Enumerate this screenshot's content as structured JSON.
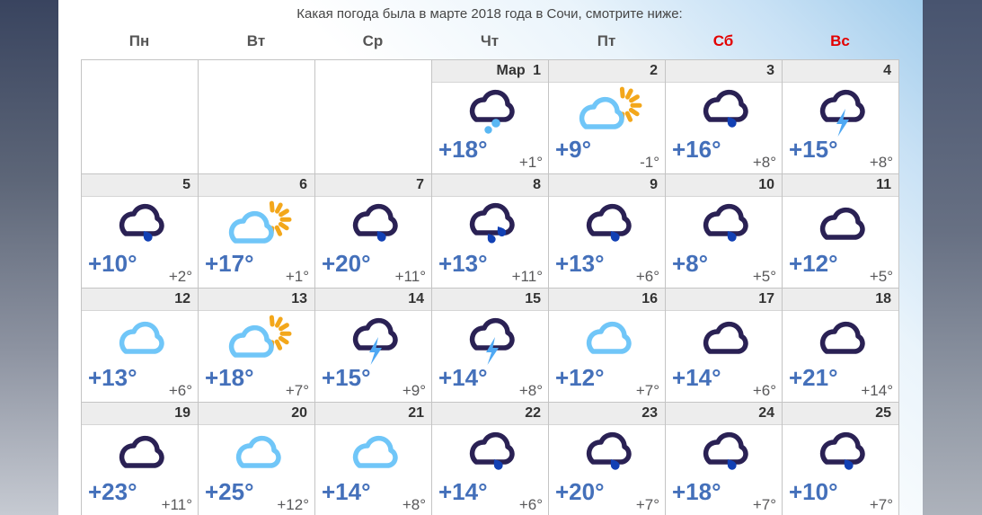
{
  "page": {
    "title": "Какая погода была в марте 2018 года в Сочи, смотрите ниже:",
    "colors": {
      "day_temp": "#4470ba",
      "night_temp": "#58585a",
      "weekday": "#555555",
      "weekend": "#e30000",
      "date_number": "#333333",
      "cloud_dark": "#2a2154",
      "cloud_light": "#70c6f8",
      "sun": "#f3a71b",
      "rain_drop": "#1240b4",
      "lightning": "#4fa8f3",
      "sleet_dot": "#59b7f3"
    }
  },
  "weekdays": [
    {
      "label": "Пн",
      "weekend": false
    },
    {
      "label": "Вт",
      "weekend": false
    },
    {
      "label": "Ср",
      "weekend": false
    },
    {
      "label": "Чт",
      "weekend": false
    },
    {
      "label": "Пт",
      "weekend": false
    },
    {
      "label": "Сб",
      "weekend": true
    },
    {
      "label": "Вс",
      "weekend": true
    }
  ],
  "weeks": [
    {
      "cells": [
        {
          "empty": true
        },
        {
          "empty": true
        },
        {
          "empty": true
        },
        {
          "date": "Мар 1",
          "icon": "sleet",
          "day": "+18°",
          "night": "+1°"
        },
        {
          "date": "2",
          "icon": "sun-cloud",
          "day": "+9°",
          "night": "-1°"
        },
        {
          "date": "3",
          "icon": "rain",
          "day": "+16°",
          "night": "+8°"
        },
        {
          "date": "4",
          "icon": "thunder",
          "day": "+15°",
          "night": "+8°"
        }
      ]
    },
    {
      "cells": [
        {
          "date": "5",
          "icon": "rain",
          "day": "+10°",
          "night": "+2°"
        },
        {
          "date": "6",
          "icon": "sun-cloud",
          "day": "+17°",
          "night": "+1°"
        },
        {
          "date": "7",
          "icon": "rain",
          "day": "+20°",
          "night": "+11°"
        },
        {
          "date": "8",
          "icon": "rain-heavy",
          "day": "+13°",
          "night": "+11°"
        },
        {
          "date": "9",
          "icon": "rain",
          "day": "+13°",
          "night": "+6°"
        },
        {
          "date": "10",
          "icon": "rain",
          "day": "+8°",
          "night": "+5°"
        },
        {
          "date": "11",
          "icon": "cloud-dark",
          "day": "+12°",
          "night": "+5°"
        }
      ]
    },
    {
      "cells": [
        {
          "date": "12",
          "icon": "cloud-light",
          "day": "+13°",
          "night": "+6°"
        },
        {
          "date": "13",
          "icon": "sun-cloud",
          "day": "+18°",
          "night": "+7°"
        },
        {
          "date": "14",
          "icon": "thunder",
          "day": "+15°",
          "night": "+9°"
        },
        {
          "date": "15",
          "icon": "thunder",
          "day": "+14°",
          "night": "+8°"
        },
        {
          "date": "16",
          "icon": "cloud-light",
          "day": "+12°",
          "night": "+7°"
        },
        {
          "date": "17",
          "icon": "cloud-dark",
          "day": "+14°",
          "night": "+6°"
        },
        {
          "date": "18",
          "icon": "cloud-dark",
          "day": "+21°",
          "night": "+14°"
        }
      ]
    },
    {
      "cells": [
        {
          "date": "19",
          "icon": "cloud-dark",
          "day": "+23°",
          "night": "+11°"
        },
        {
          "date": "20",
          "icon": "cloud-light",
          "day": "+25°",
          "night": "+12°"
        },
        {
          "date": "21",
          "icon": "cloud-light",
          "day": "+14°",
          "night": "+8°"
        },
        {
          "date": "22",
          "icon": "rain",
          "day": "+14°",
          "night": "+6°"
        },
        {
          "date": "23",
          "icon": "rain",
          "day": "+20°",
          "night": "+7°"
        },
        {
          "date": "24",
          "icon": "rain",
          "day": "+18°",
          "night": "+7°"
        },
        {
          "date": "25",
          "icon": "rain",
          "day": "+10°",
          "night": "+7°"
        }
      ]
    }
  ]
}
